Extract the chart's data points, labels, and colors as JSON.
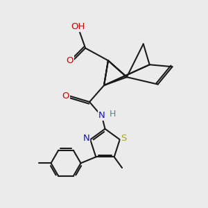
{
  "bg_color": "#ebebeb",
  "bond_color": "#1a1a1a",
  "bond_width": 1.5,
  "atom_colors": {
    "C": "#1a1a1a",
    "O": "#cc0000",
    "N": "#1111cc",
    "S": "#aaaa00",
    "H": "#4a8888"
  },
  "font_size": 9.5,
  "fig_size": [
    3.0,
    3.0
  ],
  "dpi": 100
}
